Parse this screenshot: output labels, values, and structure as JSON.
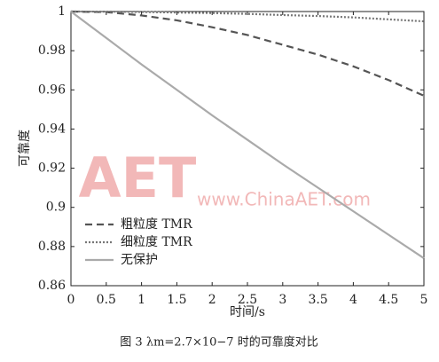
{
  "chart_data": {
    "type": "line",
    "caption": "图 3   λm=2.7×10−7 时的可靠度对比",
    "xlabel": "时间/s",
    "ylabel": "可靠度",
    "watermark": [
      "AET",
      "www.ChinaAET.com"
    ],
    "x": [
      0,
      0.5,
      1,
      1.5,
      2,
      2.5,
      3,
      3.5,
      4,
      4.5,
      5
    ],
    "series": [
      {
        "name": "粗粒度 TMR",
        "color": "#555555",
        "dash": "8,5",
        "values": [
          1,
          0.9997,
          0.998,
          0.9955,
          0.992,
          0.988,
          0.983,
          0.978,
          0.972,
          0.965,
          0.957
        ]
      },
      {
        "name": "细粒度 TMR",
        "color": "#777777",
        "dash": "2,2",
        "values": [
          1,
          0.99995,
          0.9998,
          0.9995,
          0.9992,
          0.9988,
          0.9982,
          0.9977,
          0.997,
          0.996,
          0.995
        ]
      },
      {
        "name": "无保护",
        "color": "#aaaaaa",
        "dash": "",
        "values": [
          1,
          0.9865,
          0.973,
          0.96,
          0.947,
          0.9345,
          0.922,
          0.91,
          0.898,
          0.886,
          0.874
        ]
      }
    ],
    "xlim": [
      0,
      5
    ],
    "ylim": [
      0.86,
      1
    ],
    "xticks": [
      0,
      0.5,
      1,
      1.5,
      2,
      2.5,
      3,
      3.5,
      4,
      4.5,
      5
    ],
    "yticks": [
      0.86,
      0.88,
      0.9,
      0.92,
      0.94,
      0.96,
      0.98,
      1
    ],
    "legend": "lower left"
  }
}
